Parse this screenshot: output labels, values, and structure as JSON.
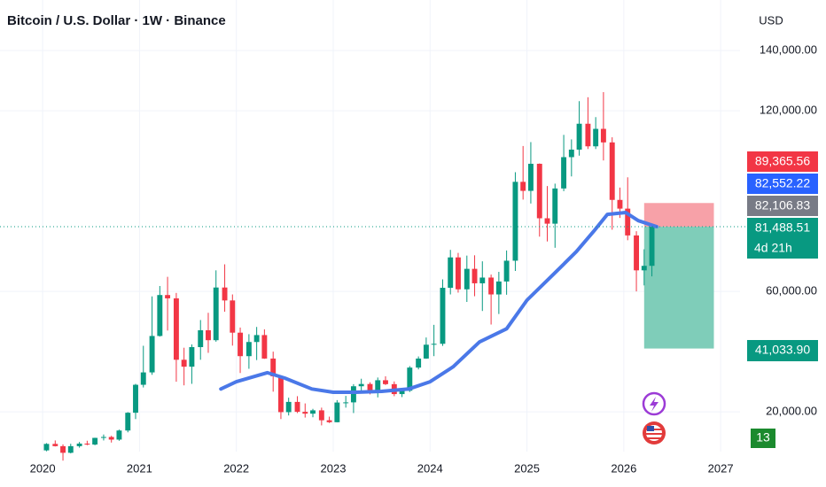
{
  "chart_data": {
    "type": "candlestick",
    "title": "Bitcoin / U.S. Dollar · 1W · Binance",
    "currency": "USD",
    "up_color": "#089981",
    "down_color": "#f23645",
    "x": [
      2020.04,
      2020.13,
      2020.21,
      2020.29,
      2020.38,
      2020.46,
      2020.54,
      2020.63,
      2020.71,
      2020.79,
      2020.88,
      2020.96,
      2021.04,
      2021.13,
      2021.21,
      2021.29,
      2021.38,
      2021.46,
      2021.54,
      2021.63,
      2021.71,
      2021.79,
      2021.88,
      2021.96,
      2022.04,
      2022.13,
      2022.21,
      2022.29,
      2022.38,
      2022.46,
      2022.54,
      2022.63,
      2022.71,
      2022.79,
      2022.88,
      2022.96,
      2023.04,
      2023.13,
      2023.21,
      2023.29,
      2023.38,
      2023.46,
      2023.54,
      2023.63,
      2023.71,
      2023.79,
      2023.88,
      2023.96,
      2024.04,
      2024.13,
      2024.21,
      2024.29,
      2024.38,
      2024.46,
      2024.54,
      2024.63,
      2024.71,
      2024.79,
      2024.88,
      2024.96,
      2025.04,
      2025.13,
      2025.21,
      2025.29,
      2025.38,
      2025.46,
      2025.54,
      2025.63,
      2025.71,
      2025.79,
      2025.88,
      2025.96,
      2026.04,
      2026.13,
      2026.21,
      2026.29
    ],
    "open": [
      7200,
      9350,
      8600,
      6400,
      8600,
      9450,
      9140,
      11350,
      11650,
      10780,
      13800,
      19700,
      28990,
      33100,
      45200,
      58800,
      57700,
      37300,
      35000,
      41500,
      47100,
      43800,
      61300,
      57000,
      46300,
      38500,
      43200,
      45500,
      37700,
      31800,
      19900,
      23300,
      20000,
      19400,
      20500,
      17200,
      16550,
      23100,
      23150,
      28500,
      29250,
      27200,
      30500,
      29200,
      25900,
      27000,
      34700,
      37700,
      42300,
      42600,
      61200,
      71300,
      60700,
      67500,
      62700,
      64600,
      59000,
      63300,
      70200,
      96400,
      93400,
      102400,
      84300,
      82500,
      94200,
      104600,
      107100,
      115700,
      108200,
      114000,
      109500,
      90400,
      87500,
      78600,
      67000,
      68500
    ],
    "high": [
      9600,
      10500,
      9200,
      9400,
      10000,
      10400,
      11400,
      12470,
      12050,
      14100,
      19900,
      29300,
      41950,
      58350,
      61800,
      64850,
      59500,
      41300,
      42400,
      50500,
      52900,
      67000,
      69000,
      59000,
      48000,
      45800,
      48200,
      47400,
      40000,
      31900,
      24700,
      25200,
      22800,
      21000,
      21400,
      18400,
      23900,
      25300,
      29200,
      31000,
      29800,
      31400,
      31800,
      30100,
      27500,
      35200,
      38400,
      44700,
      48900,
      64000,
      73800,
      72800,
      71900,
      72000,
      70000,
      65600,
      66500,
      73600,
      99600,
      108300,
      109600,
      102500,
      95000,
      95800,
      112000,
      110500,
      123200,
      124500,
      117900,
      126200,
      111200,
      94500,
      97900,
      80000,
      74000,
      82000
    ],
    "low": [
      6900,
      8500,
      3800,
      6200,
      8100,
      8900,
      8900,
      10500,
      9800,
      10400,
      13200,
      17600,
      28100,
      32300,
      45000,
      47000,
      30000,
      28800,
      29300,
      37300,
      39600,
      43300,
      53250,
      42000,
      32900,
      34300,
      37200,
      37600,
      26700,
      17600,
      18800,
      19600,
      18100,
      18200,
      15500,
      16300,
      16500,
      21400,
      19600,
      26900,
      25800,
      24800,
      28900,
      25200,
      24900,
      26600,
      34100,
      37600,
      38500,
      41900,
      59000,
      59600,
      56500,
      58400,
      53500,
      49000,
      52500,
      58900,
      66800,
      90500,
      89200,
      78200,
      76600,
      74500,
      93300,
      98200,
      105100,
      107300,
      107300,
      103500,
      80500,
      84400,
      77000,
      60000,
      62000,
      65000
    ],
    "close": [
      9350,
      8600,
      6400,
      8600,
      9450,
      9140,
      11350,
      11650,
      10780,
      13800,
      19700,
      28990,
      33100,
      45200,
      58800,
      57700,
      37300,
      35000,
      41500,
      47100,
      43800,
      61300,
      57000,
      46300,
      38500,
      43200,
      45500,
      37700,
      31800,
      19900,
      23300,
      20000,
      19400,
      20500,
      17200,
      16550,
      23100,
      23150,
      28500,
      29250,
      27200,
      30500,
      29200,
      25900,
      27000,
      34700,
      37700,
      42300,
      42600,
      61200,
      71300,
      60700,
      67500,
      62700,
      64600,
      59000,
      63300,
      70200,
      96400,
      93400,
      102400,
      84300,
      82500,
      94200,
      104600,
      107100,
      115700,
      108200,
      114000,
      109500,
      90400,
      87500,
      78600,
      67000,
      68500,
      81488.51
    ],
    "moving_average": {
      "color": "#4a78e8",
      "x": [
        2021.84,
        2022.0,
        2022.32,
        2022.5,
        2022.78,
        2023.0,
        2023.23,
        2023.5,
        2023.78,
        2024.0,
        2024.24,
        2024.51,
        2024.79,
        2025.0,
        2025.28,
        2025.51,
        2025.69,
        2025.83,
        2026.02,
        2026.15,
        2026.34
      ],
      "values": [
        27600,
        30000,
        33000,
        31200,
        27600,
        26500,
        26500,
        26800,
        27600,
        30000,
        35000,
        43200,
        47600,
        57100,
        65900,
        73200,
        80000,
        85600,
        86200,
        83500,
        81500
      ]
    },
    "position": {
      "x_start": 2026.21,
      "x_end": 2026.93,
      "entry": 81488.51,
      "stop": 89365.56,
      "target": 41033.9,
      "stop_color": "#f7a1a8",
      "target_color": "#7fcdb9"
    },
    "price_labels": [
      {
        "value": 89365.56,
        "label": "89,365.56",
        "color": "#f23645"
      },
      {
        "value": 82552.22,
        "label": "82,552.22",
        "color": "#2962ff"
      },
      {
        "value": 82106.83,
        "label": "82,106.83",
        "color": "#787b86"
      },
      {
        "value": 81488.51,
        "label": "81,488.51",
        "color": "#089981"
      },
      {
        "value": 41033.9,
        "label": "41,033.90",
        "color": "#089981"
      }
    ],
    "countdown": "4d 21h",
    "badge": {
      "value": 13,
      "color": "#1b8a2e"
    },
    "xlim": [
      2019.56,
      2027.2
    ],
    "xticks": [
      2020,
      2021,
      2022,
      2023,
      2024,
      2025,
      2026,
      2027
    ],
    "ylim": [
      6800,
      156800
    ],
    "yticks": [
      {
        "value": 20000,
        "label": "20,000.00"
      },
      {
        "value": 60000,
        "label": "60,000.00"
      },
      {
        "value": 120000,
        "label": "120,000.00"
      },
      {
        "value": 140000,
        "label": "140,000.00"
      }
    ],
    "grid": true
  }
}
